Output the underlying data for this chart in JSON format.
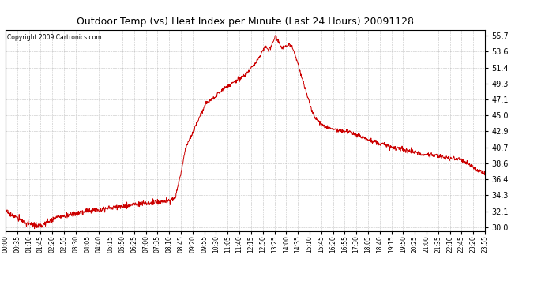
{
  "title": "Outdoor Temp (vs) Heat Index per Minute (Last 24 Hours) 20091128",
  "copyright": "Copyright 2009 Cartronics.com",
  "line_color": "#cc0000",
  "bg_color": "#ffffff",
  "plot_bg_color": "#ffffff",
  "grid_color": "#bbbbbb",
  "yticks": [
    30.0,
    32.1,
    34.3,
    36.4,
    38.6,
    40.7,
    42.9,
    45.0,
    47.1,
    49.3,
    51.4,
    53.6,
    55.7
  ],
  "ymin": 29.5,
  "ymax": 56.5,
  "xtick_labels": [
    "00:00",
    "00:35",
    "01:10",
    "01:45",
    "02:20",
    "02:55",
    "03:30",
    "04:05",
    "04:40",
    "05:15",
    "05:50",
    "06:25",
    "07:00",
    "07:35",
    "08:10",
    "08:45",
    "09:20",
    "09:55",
    "10:30",
    "11:05",
    "11:40",
    "12:15",
    "12:50",
    "13:25",
    "14:00",
    "14:35",
    "15:10",
    "15:45",
    "16:20",
    "16:55",
    "17:30",
    "18:05",
    "18:40",
    "19:15",
    "19:50",
    "20:25",
    "21:00",
    "21:35",
    "22:10",
    "22:45",
    "23:20",
    "23:55"
  ],
  "num_points": 1440,
  "key_times": [
    0,
    30,
    60,
    90,
    100,
    130,
    160,
    200,
    250,
    300,
    350,
    400,
    450,
    490,
    510,
    520,
    530,
    540,
    560,
    580,
    600,
    630,
    660,
    690,
    720,
    750,
    770,
    780,
    790,
    800,
    810,
    820,
    830,
    840,
    850,
    860,
    870,
    880,
    890,
    900,
    910,
    920,
    930,
    960,
    990,
    1020,
    1060,
    1100,
    1150,
    1200,
    1250,
    1300,
    1330,
    1360,
    1390,
    1420,
    1439
  ],
  "key_values": [
    32.1,
    31.4,
    30.6,
    30.2,
    30.0,
    30.8,
    31.4,
    31.7,
    32.2,
    32.5,
    32.8,
    33.1,
    33.3,
    33.5,
    34.0,
    36.0,
    38.0,
    40.5,
    42.5,
    44.5,
    46.5,
    47.5,
    48.8,
    49.5,
    50.5,
    52.0,
    53.5,
    54.2,
    53.8,
    54.5,
    55.7,
    54.8,
    54.0,
    54.2,
    54.5,
    54.3,
    53.0,
    51.5,
    50.0,
    48.5,
    47.0,
    45.5,
    44.5,
    43.5,
    43.0,
    42.9,
    42.3,
    41.5,
    40.9,
    40.3,
    39.8,
    39.5,
    39.3,
    39.1,
    38.5,
    37.5,
    37.2
  ]
}
